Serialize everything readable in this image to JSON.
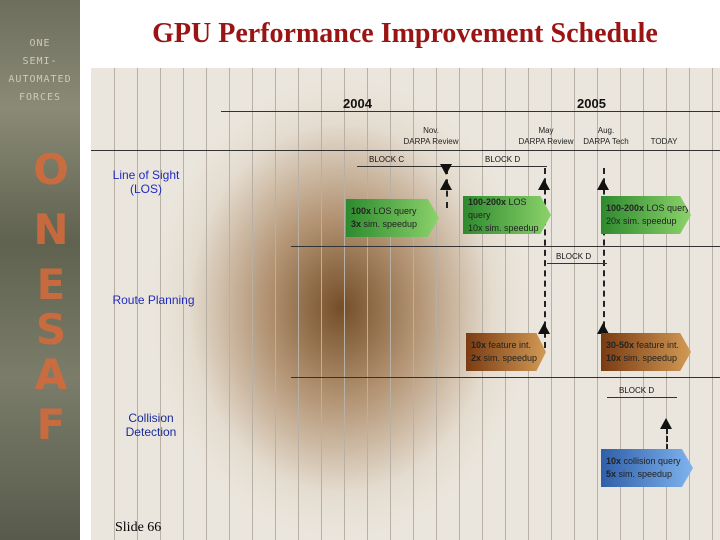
{
  "title": "GPU Performance Improvement Schedule",
  "slide_number": "Slide 66",
  "sidebar": {
    "lines": [
      "ONE",
      "SEMI-",
      "AUTOMATED",
      "FORCES"
    ],
    "big_letters": [
      "O",
      "N",
      "E",
      "S",
      "A",
      "F"
    ]
  },
  "timeline": {
    "years": [
      "2004",
      "2005"
    ],
    "milestones": [
      {
        "line1": "Nov.",
        "line2": "DARPA Review"
      },
      {
        "line1": "May",
        "line2": "DARPA Review"
      },
      {
        "line1": "Aug.",
        "line2": "DARPA Tech"
      },
      {
        "line1": "TODAY",
        "line2": ""
      }
    ]
  },
  "rows": [
    {
      "label_line1": "Line of Sight",
      "label_line2": "(LOS)"
    },
    {
      "label_line1": "Route Planning",
      "label_line2": ""
    },
    {
      "label_line1": "Collision",
      "label_line2": "Detection"
    }
  ],
  "blocks": {
    "los_c": "BLOCK C",
    "los_d": "BLOCK D",
    "route_d": "BLOCK D",
    "collision_d": "BLOCK D"
  },
  "arrows": {
    "los1": {
      "bold": "100x",
      "t1": " LOS query",
      "line2_bold": "3x",
      "line2": " sim. speedup",
      "color": "#2e8a2e"
    },
    "los2": {
      "bold": "100-200x",
      "t1": " LOS query",
      "line2_bold": "",
      "line2": "10x sim. speedup",
      "color": "#2e8a2e"
    },
    "los3": {
      "bold": "100-200x",
      "t1": " LOS query",
      "line2_bold": "",
      "line2": "20x sim. speedup",
      "color": "#2e8a2e"
    },
    "route1": {
      "bold": "10x",
      "t1": " feature int.",
      "line2_bold": "2x",
      "line2": " sim. speedup",
      "color": "#7a3b12"
    },
    "route2": {
      "bold": "30-50x",
      "t1": " feature int.",
      "line2_bold": "10x",
      "line2": " sim. speedup",
      "color": "#7a3b12"
    },
    "coll1": {
      "bold": "10x",
      "t1": " collision query",
      "line2_bold": "5x",
      "line2": " sim. speedup",
      "color": "#2f5fa8"
    }
  },
  "colors": {
    "title": "#9b1414",
    "row_label": "#1f2bbf",
    "collision_label": "#1a2a9a"
  }
}
